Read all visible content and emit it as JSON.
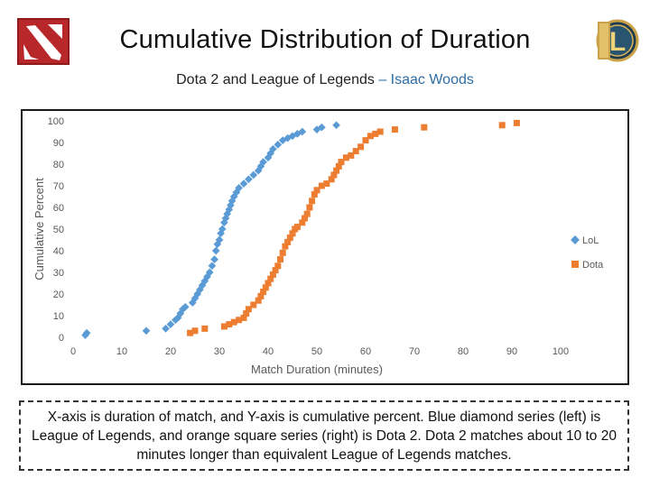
{
  "header": {
    "title": "Cumulative Distribution of Duration",
    "subtitle_main": "Dota 2 and League of Legends",
    "subtitle_author": "– Isaac Woods"
  },
  "logos": {
    "left_icon": "dota2-logo-icon",
    "right_icon": "league-of-legends-logo-icon",
    "right_letter": "L"
  },
  "caption": {
    "text": "X-axis is duration of match, and Y-axis is cumulative percent. Blue diamond series (left) is League of Legends, and orange square series (right) is Dota 2. Dota 2 matches about 10 to 20 minutes longer than equivalent League of Legends matches."
  },
  "chart_data": {
    "type": "scatter",
    "title": "",
    "xlabel": "Match Duration (minutes)",
    "ylabel": "Cumulative Percent",
    "xlim": [
      0,
      100
    ],
    "ylim": [
      0,
      100
    ],
    "xticks": [
      0,
      10,
      20,
      30,
      40,
      50,
      60,
      70,
      80,
      90,
      100
    ],
    "yticks": [
      0,
      10,
      20,
      30,
      40,
      50,
      60,
      70,
      80,
      90,
      100
    ],
    "grid": false,
    "legend": "right",
    "series": [
      {
        "name": "LoL",
        "marker": "diamond",
        "color": "#5b9bd5",
        "points": [
          [
            2.5,
            1
          ],
          [
            2.8,
            2
          ],
          [
            15,
            3
          ],
          [
            19,
            4
          ],
          [
            20,
            6
          ],
          [
            21,
            8
          ],
          [
            21.5,
            9
          ],
          [
            22,
            11
          ],
          [
            22.5,
            13
          ],
          [
            23,
            14
          ],
          [
            24.5,
            16
          ],
          [
            25,
            18
          ],
          [
            25.5,
            20
          ],
          [
            26,
            22
          ],
          [
            26.5,
            24
          ],
          [
            27,
            26
          ],
          [
            27.5,
            28
          ],
          [
            28,
            30
          ],
          [
            28.5,
            33
          ],
          [
            29,
            36
          ],
          [
            29.3,
            40
          ],
          [
            29.6,
            43
          ],
          [
            30,
            45
          ],
          [
            30.3,
            48
          ],
          [
            30.6,
            50
          ],
          [
            31,
            53
          ],
          [
            31.3,
            55
          ],
          [
            31.6,
            57
          ],
          [
            32,
            59
          ],
          [
            32.3,
            61
          ],
          [
            32.6,
            63
          ],
          [
            33,
            65
          ],
          [
            33.5,
            67
          ],
          [
            34,
            69
          ],
          [
            35,
            71
          ],
          [
            36,
            73
          ],
          [
            37,
            75
          ],
          [
            38,
            77
          ],
          [
            38.5,
            79
          ],
          [
            39,
            81
          ],
          [
            40,
            83
          ],
          [
            40.5,
            85
          ],
          [
            41,
            87
          ],
          [
            42,
            89
          ],
          [
            43,
            91
          ],
          [
            44,
            92
          ],
          [
            45,
            93
          ],
          [
            46,
            94
          ],
          [
            47,
            95
          ],
          [
            50,
            96
          ],
          [
            51,
            97
          ],
          [
            54,
            98
          ]
        ]
      },
      {
        "name": "Dota",
        "marker": "square",
        "color": "#ed7d31",
        "points": [
          [
            24,
            2
          ],
          [
            25,
            3
          ],
          [
            27,
            4
          ],
          [
            31,
            5
          ],
          [
            32,
            6
          ],
          [
            33,
            7
          ],
          [
            34,
            8
          ],
          [
            35,
            9
          ],
          [
            35.5,
            11
          ],
          [
            36,
            13
          ],
          [
            37,
            15
          ],
          [
            38,
            17
          ],
          [
            38.5,
            19
          ],
          [
            39,
            21
          ],
          [
            39.5,
            23
          ],
          [
            40,
            25
          ],
          [
            40.5,
            27
          ],
          [
            41,
            29
          ],
          [
            41.5,
            31
          ],
          [
            42,
            33
          ],
          [
            42.5,
            36
          ],
          [
            43,
            39
          ],
          [
            43.5,
            42
          ],
          [
            44,
            44
          ],
          [
            44.5,
            46
          ],
          [
            45,
            48
          ],
          [
            45.5,
            50
          ],
          [
            46,
            51
          ],
          [
            47,
            53
          ],
          [
            47.5,
            55
          ],
          [
            48,
            57
          ],
          [
            48.5,
            60
          ],
          [
            49,
            63
          ],
          [
            49.5,
            66
          ],
          [
            50,
            68
          ],
          [
            51,
            70
          ],
          [
            52,
            71
          ],
          [
            53,
            73
          ],
          [
            53.5,
            75
          ],
          [
            54,
            77
          ],
          [
            54.5,
            79
          ],
          [
            55,
            81
          ],
          [
            56,
            83
          ],
          [
            57,
            84
          ],
          [
            58,
            86
          ],
          [
            59,
            88
          ],
          [
            60,
            91
          ],
          [
            61,
            93
          ],
          [
            62,
            94
          ],
          [
            63,
            95
          ],
          [
            66,
            96
          ],
          [
            72,
            97
          ],
          [
            88,
            98
          ],
          [
            91,
            99
          ]
        ]
      }
    ]
  }
}
